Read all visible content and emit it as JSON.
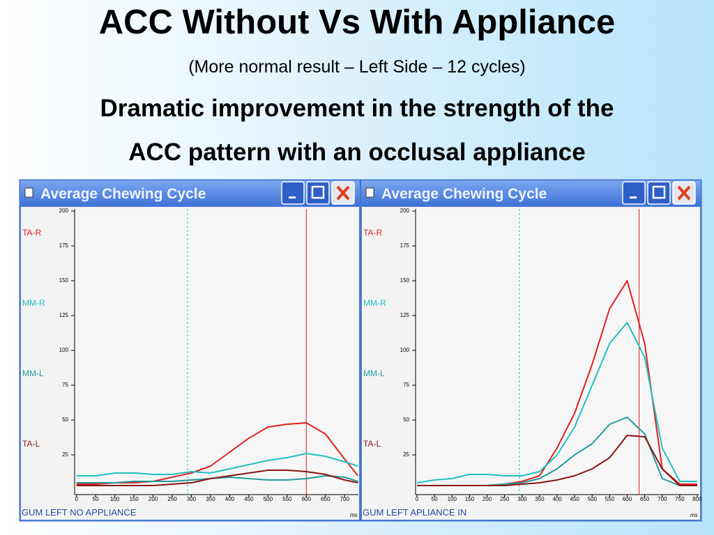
{
  "title": "ACC Without Vs With Appliance",
  "subtitle": "(More normal result – Left Side – 12 cycles)",
  "caption_lines": [
    "Dramatic improvement in the strength of the",
    "ACC pattern with an occlusal appliance"
  ],
  "chart_data": [
    {
      "type": "line",
      "window_title": "Average Chewing Cycle",
      "footer": "GUM LEFT NO APPLIANCE",
      "x_unit": "ms",
      "x": [
        0,
        50,
        100,
        150,
        200,
        250,
        300,
        350,
        400,
        450,
        500,
        550,
        600,
        650,
        700,
        735
      ],
      "xlim": [
        -5,
        736
      ],
      "xticks": [
        0,
        50,
        100,
        150,
        200,
        250,
        300,
        350,
        400,
        450,
        500,
        550,
        600,
        650,
        700
      ],
      "ylim": [
        -3.5,
        201.5
      ],
      "yticks": [
        25,
        50,
        75,
        100,
        125,
        150,
        175,
        200
      ],
      "series": [
        {
          "name": "TA-R",
          "color": "#e02020",
          "values": [
            4,
            4,
            5,
            5,
            6,
            9,
            12,
            17,
            27,
            37,
            45,
            47,
            48,
            40,
            22,
            10
          ]
        },
        {
          "name": "MM-R",
          "color": "#20c0c0",
          "values": [
            10,
            10,
            12,
            12,
            11,
            11,
            13,
            12,
            15,
            18,
            21,
            23,
            26,
            24,
            20,
            17
          ]
        },
        {
          "name": "MM-L",
          "color": "#1f9c9c",
          "values": [
            5,
            5,
            5,
            6,
            6,
            6,
            7,
            8,
            9,
            8,
            7,
            7,
            8,
            10,
            9,
            6
          ]
        },
        {
          "name": "TA-L",
          "color": "#8b1414",
          "values": [
            3,
            3,
            3,
            3,
            3,
            4,
            5,
            8,
            10,
            12,
            14,
            14,
            13,
            11,
            7,
            5
          ]
        }
      ],
      "cursors": [
        {
          "x": 290,
          "color": "#20c0c0",
          "dashed": true
        },
        {
          "x": 600,
          "color": "#e02020",
          "dashed": false
        }
      ]
    },
    {
      "type": "line",
      "window_title": "Average Chewing Cycle",
      "footer": "GUM LEFT APLIANCE IN",
      "x_unit": "ms",
      "x": [
        0,
        50,
        100,
        150,
        200,
        250,
        300,
        350,
        400,
        450,
        500,
        550,
        600,
        650,
        700,
        750,
        800
      ],
      "xlim": [
        -4,
        804
      ],
      "xticks": [
        0,
        50,
        100,
        150,
        200,
        250,
        300,
        350,
        400,
        450,
        500,
        550,
        600,
        650,
        700,
        750,
        800
      ],
      "ylim": [
        -3.5,
        201.5
      ],
      "yticks": [
        25,
        50,
        75,
        100,
        125,
        150,
        175,
        200
      ],
      "series": [
        {
          "name": "TA-R",
          "color": "#e02020",
          "values": [
            3,
            3,
            3,
            3,
            3,
            4,
            6,
            10,
            30,
            55,
            90,
            130,
            150,
            105,
            15,
            4,
            4
          ]
        },
        {
          "name": "MM-R",
          "color": "#20c0c0",
          "values": [
            5,
            7,
            8,
            11,
            11,
            10,
            10,
            13,
            25,
            45,
            75,
            105,
            120,
            95,
            30,
            6,
            6
          ]
        },
        {
          "name": "MM-L",
          "color": "#1f9c9c",
          "values": [
            3,
            3,
            3,
            3,
            3,
            4,
            5,
            8,
            15,
            25,
            33,
            47,
            52,
            40,
            8,
            3,
            3
          ]
        },
        {
          "name": "TA-L",
          "color": "#8b1414",
          "values": [
            3,
            3,
            3,
            3,
            3,
            3,
            4,
            5,
            7,
            10,
            15,
            23,
            39,
            38,
            15,
            3,
            3
          ]
        }
      ],
      "cursors": [
        {
          "x": 292,
          "color": "#20c0c0",
          "dashed": true
        },
        {
          "x": 634,
          "color": "#e02020",
          "dashed": false
        }
      ]
    }
  ]
}
